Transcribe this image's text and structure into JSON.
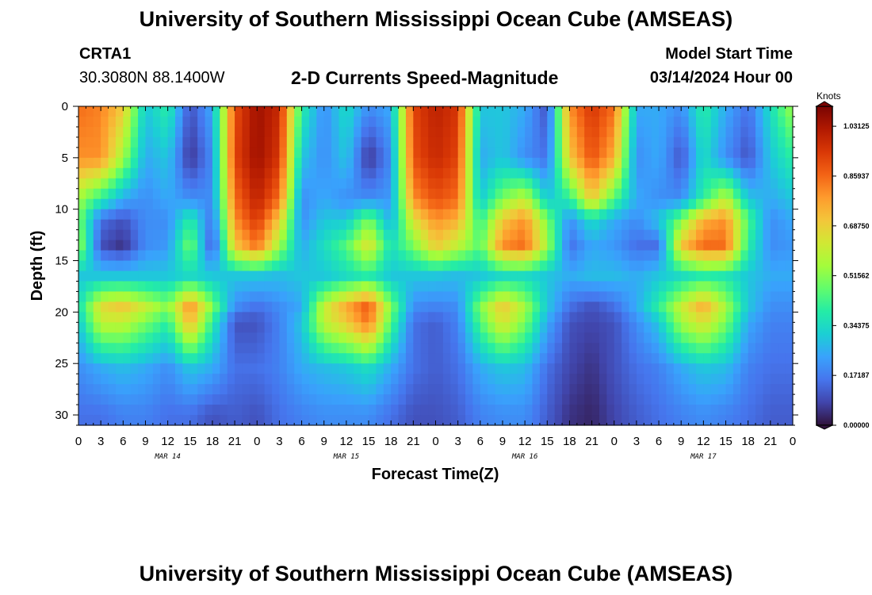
{
  "page": {
    "title": "University of Southern Mississippi Ocean Cube (AMSEAS)",
    "bottom_title": "University of Southern Mississippi Ocean Cube (AMSEAS)",
    "station": "CRTA1",
    "coordinates": "30.3080N  88.1400W",
    "model_start_label": "Model Start Time",
    "model_start_value": "03/14/2024 Hour 00"
  },
  "chart_data": {
    "type": "heatmap",
    "title": "2-D Currents Speed-Magnitude",
    "xlabel": "Forecast Time(Z)",
    "ylabel": "Depth (ft)",
    "x_tick_labels": [
      "0",
      "3",
      "6",
      "9",
      "12",
      "15",
      "18",
      "21",
      "0",
      "3",
      "6",
      "9",
      "12",
      "15",
      "18",
      "21",
      "0",
      "3",
      "6",
      "9",
      "12",
      "15",
      "18",
      "21",
      "0",
      "3",
      "6",
      "9",
      "12",
      "15",
      "18",
      "21",
      "0"
    ],
    "day_labels": [
      {
        "label": "MAR 14",
        "hour": 12
      },
      {
        "label": "MAR 15",
        "hour": 36
      },
      {
        "label": "MAR 16",
        "hour": 60
      },
      {
        "label": "MAR 17",
        "hour": 84
      }
    ],
    "x_range_hours": [
      0,
      96
    ],
    "y_ticks": [
      0,
      5,
      10,
      15,
      20,
      25,
      30
    ],
    "y_range_ft": [
      0,
      31
    ],
    "colorbar": {
      "unit": "Knots",
      "min": 0.0,
      "max": 1.1,
      "tick_values": [
        0.0,
        0.171875,
        0.34375,
        0.515625,
        0.6875,
        0.859375,
        1.03125
      ],
      "tick_labels": [
        "0.00000",
        "0.17187",
        "0.34375",
        "0.51562",
        "0.68750",
        "0.85937",
        "1.03125"
      ],
      "colors": [
        "#30123b",
        "#4145ab",
        "#4675ed",
        "#39a2fc",
        "#1bcfd4",
        "#24eca6",
        "#61fc6c",
        "#a4fc3b",
        "#d1e834",
        "#f3c63a",
        "#fe9b2d",
        "#f36315",
        "#d93806",
        "#b11901",
        "#7a0403"
      ]
    },
    "speed_field": {
      "description": "Current speed (knots) sampled at 3-hour steps (rows, hour 0 to 96) for each depth band (columns)",
      "depth_bands_ft": [
        0,
        5,
        9,
        11,
        13.5,
        16.5,
        19.5,
        21,
        25.5,
        30
      ],
      "hours": [
        0,
        3,
        6,
        9,
        12,
        15,
        18,
        21,
        24,
        27,
        30,
        33,
        36,
        39,
        42,
        45,
        48,
        51,
        54,
        57,
        60,
        63,
        66,
        69,
        72,
        75,
        78,
        81,
        84,
        87,
        90,
        93,
        96
      ],
      "values": [
        [
          0.85,
          0.8,
          0.55,
          0.5,
          0.55,
          0.3,
          0.35,
          0.3,
          0.2,
          0.15
        ],
        [
          0.82,
          0.8,
          0.4,
          0.15,
          0.1,
          0.3,
          0.65,
          0.6,
          0.25,
          0.15
        ],
        [
          0.7,
          0.55,
          0.25,
          0.1,
          0.05,
          0.3,
          0.7,
          0.6,
          0.28,
          0.18
        ],
        [
          0.3,
          0.25,
          0.2,
          0.2,
          0.2,
          0.3,
          0.6,
          0.5,
          0.25,
          0.18
        ],
        [
          0.4,
          0.3,
          0.25,
          0.2,
          0.22,
          0.3,
          0.5,
          0.4,
          0.2,
          0.15
        ],
        [
          0.1,
          0.05,
          0.2,
          0.4,
          0.5,
          0.35,
          0.8,
          0.75,
          0.3,
          0.15
        ],
        [
          0.25,
          0.2,
          0.2,
          0.15,
          0.1,
          0.3,
          0.5,
          0.4,
          0.25,
          0.1
        ],
        [
          0.9,
          0.92,
          0.85,
          0.8,
          0.7,
          0.3,
          0.2,
          0.1,
          0.15,
          0.12
        ],
        [
          1.05,
          1.05,
          1.0,
          0.95,
          0.85,
          0.3,
          0.15,
          0.1,
          0.15,
          0.1
        ],
        [
          0.98,
          0.95,
          0.85,
          0.7,
          0.55,
          0.28,
          0.2,
          0.18,
          0.18,
          0.15
        ],
        [
          0.4,
          0.3,
          0.2,
          0.2,
          0.25,
          0.3,
          0.25,
          0.3,
          0.25,
          0.18
        ],
        [
          0.2,
          0.2,
          0.25,
          0.3,
          0.35,
          0.3,
          0.6,
          0.6,
          0.28,
          0.2
        ],
        [
          0.35,
          0.3,
          0.2,
          0.3,
          0.45,
          0.35,
          0.75,
          0.7,
          0.3,
          0.2
        ],
        [
          0.2,
          0.05,
          0.2,
          0.5,
          0.65,
          0.4,
          0.88,
          0.85,
          0.35,
          0.2
        ],
        [
          0.25,
          0.2,
          0.22,
          0.25,
          0.35,
          0.3,
          0.5,
          0.45,
          0.25,
          0.15
        ],
        [
          0.92,
          0.9,
          0.8,
          0.65,
          0.5,
          0.3,
          0.2,
          0.15,
          0.15,
          0.1
        ],
        [
          1.0,
          0.98,
          0.9,
          0.8,
          0.7,
          0.3,
          0.18,
          0.12,
          0.12,
          0.1
        ],
        [
          0.95,
          0.92,
          0.85,
          0.75,
          0.6,
          0.28,
          0.2,
          0.18,
          0.15,
          0.12
        ],
        [
          0.3,
          0.25,
          0.3,
          0.4,
          0.45,
          0.3,
          0.5,
          0.45,
          0.25,
          0.18
        ],
        [
          0.3,
          0.3,
          0.5,
          0.7,
          0.8,
          0.35,
          0.7,
          0.65,
          0.3,
          0.2
        ],
        [
          0.25,
          0.2,
          0.6,
          0.8,
          0.85,
          0.35,
          0.55,
          0.5,
          0.28,
          0.2
        ],
        [
          0.1,
          0.15,
          0.3,
          0.5,
          0.55,
          0.3,
          0.3,
          0.25,
          0.15,
          0.12
        ],
        [
          0.8,
          0.7,
          0.4,
          0.2,
          0.15,
          0.25,
          0.15,
          0.1,
          0.08,
          0.05
        ],
        [
          0.95,
          0.9,
          0.7,
          0.35,
          0.25,
          0.28,
          0.1,
          0.08,
          0.05,
          0.03
        ],
        [
          0.85,
          0.75,
          0.45,
          0.25,
          0.22,
          0.28,
          0.15,
          0.1,
          0.1,
          0.08
        ],
        [
          0.25,
          0.2,
          0.25,
          0.2,
          0.15,
          0.25,
          0.25,
          0.2,
          0.15,
          0.12
        ],
        [
          0.25,
          0.25,
          0.2,
          0.3,
          0.15,
          0.3,
          0.4,
          0.3,
          0.18,
          0.15
        ],
        [
          0.2,
          0.1,
          0.2,
          0.5,
          0.7,
          0.35,
          0.6,
          0.55,
          0.25,
          0.18
        ],
        [
          0.4,
          0.35,
          0.4,
          0.75,
          0.85,
          0.4,
          0.75,
          0.65,
          0.3,
          0.2
        ],
        [
          0.25,
          0.2,
          0.6,
          0.8,
          0.85,
          0.38,
          0.55,
          0.5,
          0.28,
          0.18
        ],
        [
          0.15,
          0.1,
          0.3,
          0.45,
          0.4,
          0.3,
          0.3,
          0.25,
          0.18,
          0.15
        ],
        [
          0.35,
          0.3,
          0.25,
          0.2,
          0.2,
          0.25,
          0.2,
          0.18,
          0.15,
          0.12
        ],
        [
          0.55,
          0.4,
          0.3,
          0.25,
          0.22,
          0.25,
          0.2,
          0.18,
          0.15,
          0.12
        ]
      ]
    }
  }
}
